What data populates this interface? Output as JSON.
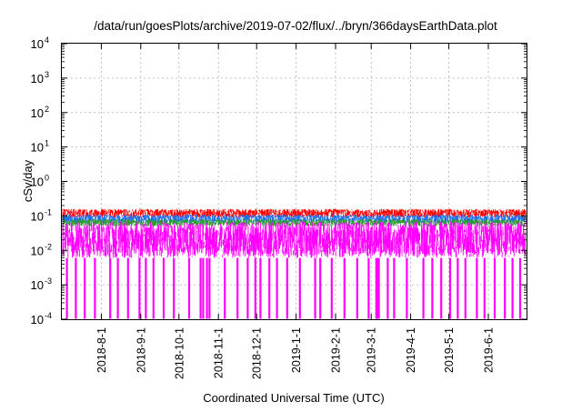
{
  "chart_data": {
    "type": "line",
    "title": "/data/run/goesPlots/archive/2019-07-02/flux/../bryn/366daysEarthData.plot",
    "xlabel": "Coordinated Universal Time (UTC)",
    "ylabel": "cSv/day",
    "x_scale": "time",
    "y_scale": "log",
    "xlim": [
      "2018-07-01",
      "2019-07-01"
    ],
    "ylim": [
      0.0001,
      10000
    ],
    "grid": true,
    "legend": "none",
    "x_ticks": [
      "2018-8-1",
      "2018-9-1",
      "2018-10-1",
      "2018-11-1",
      "2018-12-1",
      "2019-1-1",
      "2019-2-1",
      "2019-3-1",
      "2019-4-1",
      "2019-5-1",
      "2019-6-1"
    ],
    "y_ticks": [
      {
        "value": 0.0001,
        "mantissa": "10",
        "exponent": "-4"
      },
      {
        "value": 0.001,
        "mantissa": "10",
        "exponent": "-3"
      },
      {
        "value": 0.01,
        "mantissa": "10",
        "exponent": "-2"
      },
      {
        "value": 0.1,
        "mantissa": "10",
        "exponent": "-1"
      },
      {
        "value": 1,
        "mantissa": "10",
        "exponent": "0"
      },
      {
        "value": 10,
        "mantissa": "10",
        "exponent": "1"
      },
      {
        "value": 100,
        "mantissa": "10",
        "exponent": "2"
      },
      {
        "value": 1000,
        "mantissa": "10",
        "exponent": "3"
      },
      {
        "value": 10000,
        "mantissa": "10",
        "exponent": "4"
      }
    ],
    "series": [
      {
        "color": "#ff0000",
        "band_low": 0.09,
        "band_high": 0.16,
        "typical": 0.12
      },
      {
        "color": "#1e6fe8",
        "band_low": 0.06,
        "band_high": 0.11,
        "typical": 0.09
      },
      {
        "color": "#2e9d2e",
        "band_low": 0.05,
        "band_high": 0.08,
        "typical": 0.065
      },
      {
        "color": "#ff00ff",
        "band_low": 0.006,
        "band_high": 0.07,
        "typical": 0.03,
        "dropout_min": 0.0001
      }
    ],
    "dropout_dates": [
      "2018-07-05",
      "2018-07-12",
      "2018-07-19",
      "2018-07-27",
      "2018-08-08",
      "2018-08-14",
      "2018-08-22",
      "2018-08-31",
      "2018-09-05",
      "2018-09-11",
      "2018-09-19",
      "2018-09-27",
      "2018-10-09",
      "2018-10-18",
      "2018-10-20",
      "2018-10-23",
      "2018-10-25",
      "2018-11-06",
      "2018-11-16",
      "2018-11-24",
      "2018-11-30",
      "2018-12-04",
      "2018-12-11",
      "2018-12-17",
      "2018-12-25",
      "2019-01-04",
      "2019-01-16",
      "2019-01-20",
      "2019-01-29",
      "2019-02-08",
      "2019-02-18",
      "2019-02-27",
      "2019-03-05",
      "2019-03-06",
      "2019-03-07",
      "2019-03-14",
      "2019-03-19",
      "2019-03-29",
      "2019-04-11",
      "2019-04-18",
      "2019-04-25",
      "2019-05-02",
      "2019-05-08",
      "2019-05-14",
      "2019-05-23",
      "2019-05-29",
      "2019-06-06",
      "2019-06-14",
      "2019-06-20",
      "2019-06-26"
    ]
  }
}
